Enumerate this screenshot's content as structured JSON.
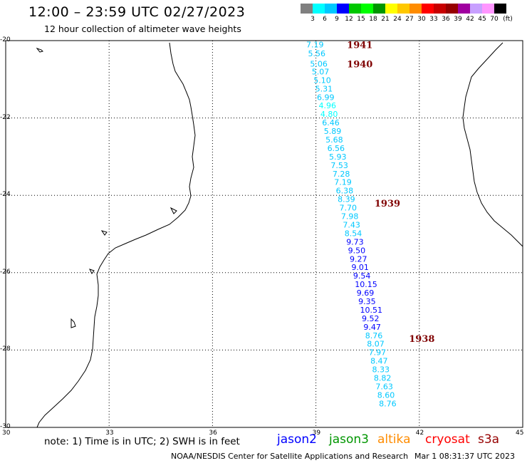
{
  "header": {
    "title": "12:00 – 23:59 UTC 02/27/2023",
    "subtitle": "12 hour collection of altimeter wave heights"
  },
  "scale": {
    "colors": [
      "#808080",
      "#00ffff",
      "#00c8ff",
      "#0000ff",
      "#00c800",
      "#00ff00",
      "#009600",
      "#ffff00",
      "#ffc800",
      "#ff8c00",
      "#ff0000",
      "#c80000",
      "#960000",
      "#a000a0",
      "#c8a0ff",
      "#ff96ff",
      "#000000"
    ],
    "labels": [
      "3",
      "6",
      "9",
      "12",
      "15",
      "18",
      "21",
      "24",
      "27",
      "30",
      "33",
      "36",
      "39",
      "42",
      "45",
      "70"
    ],
    "unit": "(ft)"
  },
  "axes": {
    "lat_labels": [
      "-20",
      "-22",
      "-24",
      "-26",
      "-28",
      "-30"
    ],
    "lat_values": [
      -20,
      -22,
      -24,
      -26,
      -28,
      -30
    ],
    "lon_labels": [
      "30",
      "33",
      "36",
      "39",
      "42",
      "45"
    ],
    "lon_values": [
      30,
      33,
      36,
      39,
      42,
      45
    ]
  },
  "passes": [
    {
      "label": "1941",
      "lon": 39.9,
      "lat": -20.1
    },
    {
      "label": "1940",
      "lon": 39.9,
      "lat": -20.6
    },
    {
      "label": "1939",
      "lon": 40.7,
      "lat": -24.2
    },
    {
      "label": "1938",
      "lon": 41.7,
      "lat": -27.7
    }
  ],
  "wave_heights": [
    {
      "v": "7.19",
      "lon": 38.72,
      "lat": -20.1,
      "c": "#00c8ff"
    },
    {
      "v": "5.56",
      "lon": 38.77,
      "lat": -20.33,
      "c": "#00c8ff"
    },
    {
      "v": "5.06",
      "lon": 38.83,
      "lat": -20.6,
      "c": "#00c8ff"
    },
    {
      "v": "5.07",
      "lon": 38.88,
      "lat": -20.8,
      "c": "#00c8ff"
    },
    {
      "v": "5.10",
      "lon": 38.93,
      "lat": -21.02,
      "c": "#00c8ff"
    },
    {
      "v": "5.31",
      "lon": 38.98,
      "lat": -21.24,
      "c": "#00c8ff"
    },
    {
      "v": "6.99",
      "lon": 39.03,
      "lat": -21.46,
      "c": "#00c8ff"
    },
    {
      "v": "4.96",
      "lon": 39.08,
      "lat": -21.68,
      "c": "#00ffff"
    },
    {
      "v": "4.80",
      "lon": 39.13,
      "lat": -21.9,
      "c": "#00ffff"
    },
    {
      "v": "6.46",
      "lon": 39.18,
      "lat": -22.12,
      "c": "#00c8ff"
    },
    {
      "v": "5.89",
      "lon": 39.23,
      "lat": -22.34,
      "c": "#00c8ff"
    },
    {
      "v": "5.68",
      "lon": 39.28,
      "lat": -22.56,
      "c": "#00c8ff"
    },
    {
      "v": "6.56",
      "lon": 39.33,
      "lat": -22.78,
      "c": "#00c8ff"
    },
    {
      "v": "5.93",
      "lon": 39.38,
      "lat": -23.0,
      "c": "#00c8ff"
    },
    {
      "v": "7.53",
      "lon": 39.43,
      "lat": -23.22,
      "c": "#00c8ff"
    },
    {
      "v": "7.28",
      "lon": 39.48,
      "lat": -23.44,
      "c": "#00c8ff"
    },
    {
      "v": "7.19",
      "lon": 39.53,
      "lat": -23.66,
      "c": "#00c8ff"
    },
    {
      "v": "6.38",
      "lon": 39.58,
      "lat": -23.88,
      "c": "#00c8ff"
    },
    {
      "v": "8.39",
      "lon": 39.63,
      "lat": -24.1,
      "c": "#00c8ff"
    },
    {
      "v": "7.70",
      "lon": 39.68,
      "lat": -24.32,
      "c": "#00c8ff"
    },
    {
      "v": "7.98",
      "lon": 39.73,
      "lat": -24.54,
      "c": "#00c8ff"
    },
    {
      "v": "7.43",
      "lon": 39.78,
      "lat": -24.76,
      "c": "#00c8ff"
    },
    {
      "v": "8.54",
      "lon": 39.83,
      "lat": -24.98,
      "c": "#00c8ff"
    },
    {
      "v": "9.73",
      "lon": 39.88,
      "lat": -25.2,
      "c": "#0000ff"
    },
    {
      "v": "9.50",
      "lon": 39.93,
      "lat": -25.42,
      "c": "#0000ff"
    },
    {
      "v": "9.27",
      "lon": 39.98,
      "lat": -25.64,
      "c": "#0000ff"
    },
    {
      "v": "9.01",
      "lon": 40.03,
      "lat": -25.86,
      "c": "#0000ff"
    },
    {
      "v": "9.54",
      "lon": 40.08,
      "lat": -26.08,
      "c": "#0000ff"
    },
    {
      "v": "10.15",
      "lon": 40.13,
      "lat": -26.3,
      "c": "#0000ff"
    },
    {
      "v": "9.69",
      "lon": 40.18,
      "lat": -26.52,
      "c": "#0000ff"
    },
    {
      "v": "9.35",
      "lon": 40.23,
      "lat": -26.74,
      "c": "#0000ff"
    },
    {
      "v": "10.51",
      "lon": 40.28,
      "lat": -26.96,
      "c": "#0000ff"
    },
    {
      "v": "9.52",
      "lon": 40.33,
      "lat": -27.18,
      "c": "#0000ff"
    },
    {
      "v": "9.47",
      "lon": 40.38,
      "lat": -27.4,
      "c": "#0000ff"
    },
    {
      "v": "8.76",
      "lon": 40.43,
      "lat": -27.62,
      "c": "#00c8ff"
    },
    {
      "v": "8.07",
      "lon": 40.48,
      "lat": -27.84,
      "c": "#00c8ff"
    },
    {
      "v": "7.97",
      "lon": 40.53,
      "lat": -28.06,
      "c": "#00c8ff"
    },
    {
      "v": "8.47",
      "lon": 40.58,
      "lat": -28.28,
      "c": "#00c8ff"
    },
    {
      "v": "8.33",
      "lon": 40.63,
      "lat": -28.5,
      "c": "#00c8ff"
    },
    {
      "v": "8.82",
      "lon": 40.68,
      "lat": -28.72,
      "c": "#00c8ff"
    },
    {
      "v": "7.63",
      "lon": 40.73,
      "lat": -28.94,
      "c": "#00c8ff"
    },
    {
      "v": "8.60",
      "lon": 40.78,
      "lat": -29.16,
      "c": "#00c8ff"
    },
    {
      "v": "8.76",
      "lon": 40.83,
      "lat": -29.38,
      "c": "#00c8ff"
    }
  ],
  "note": "note: 1) Time is in UTC; 2) SWH is in feet",
  "satellites": [
    {
      "name": "jason2",
      "color": "#0000ff"
    },
    {
      "name": "jason3",
      "color": "#009600"
    },
    {
      "name": "altika",
      "color": "#ff8c00"
    },
    {
      "name": "cryosat",
      "color": "#ff0000"
    },
    {
      "name": "s3a",
      "color": "#960000"
    }
  ],
  "footer": {
    "agency": "NOAA/NESDIS Center for Satellite Applications and Research",
    "timestamp": "Mar  1 08:31:37 UTC 2023"
  }
}
